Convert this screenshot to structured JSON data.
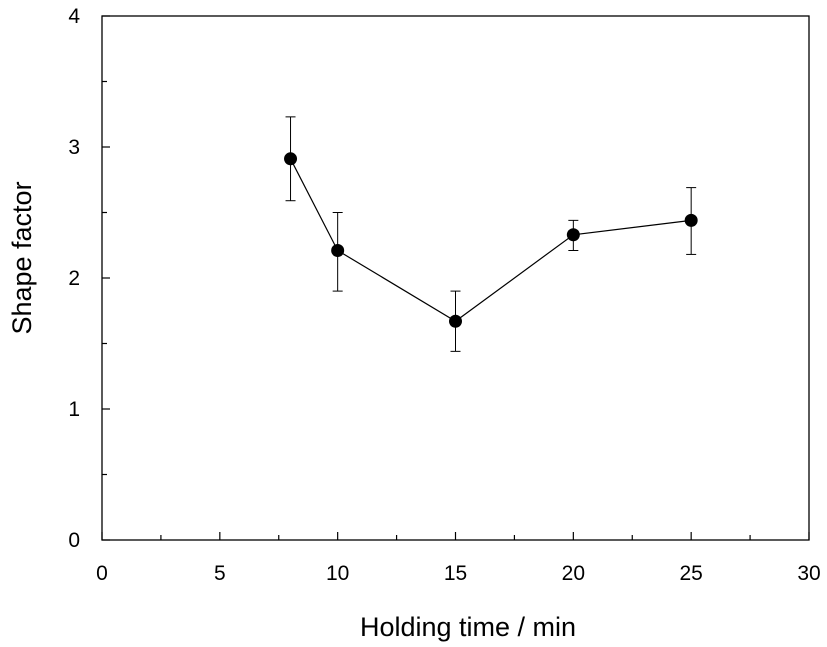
{
  "chart_data": {
    "type": "scatter",
    "title": "",
    "xlabel": "Holding time / min",
    "ylabel": "Shape factor",
    "xlim": [
      0,
      30
    ],
    "ylim": [
      0,
      4
    ],
    "xticks": [
      0,
      5,
      10,
      15,
      20,
      25,
      30
    ],
    "yticks": [
      0,
      1,
      2,
      3,
      4
    ],
    "grid": false,
    "legend": "none",
    "connected_line": true,
    "marker": "filled-circle",
    "series": [
      {
        "x": [
          8,
          10,
          15,
          20,
          25
        ],
        "y": [
          2.91,
          2.21,
          1.67,
          2.33,
          2.44
        ],
        "error_upper": [
          3.23,
          2.5,
          1.9,
          2.44,
          2.69
        ],
        "error_lower": [
          2.59,
          1.9,
          1.44,
          2.21,
          2.18
        ]
      }
    ]
  },
  "colors": {
    "marker": "#000000",
    "line": "#000000",
    "axis": "#000000",
    "background": "#ffffff"
  }
}
